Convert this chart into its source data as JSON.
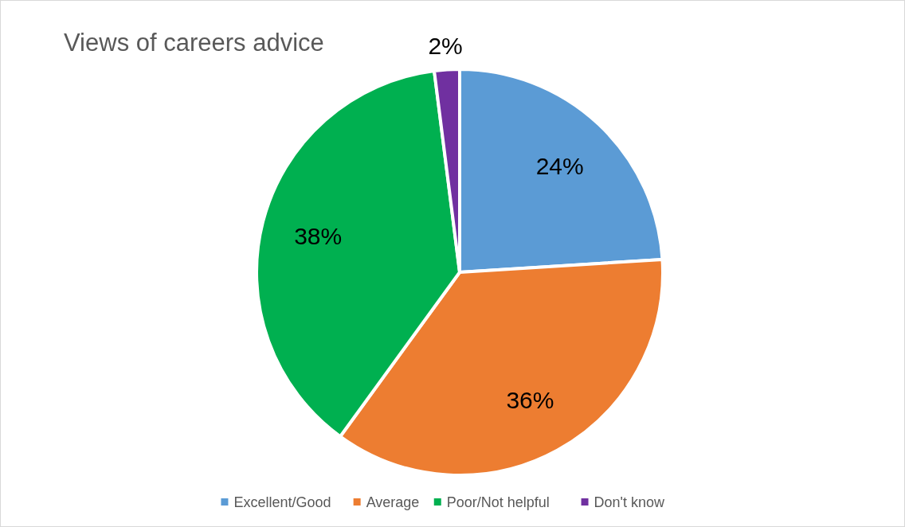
{
  "chart_data": {
    "type": "pie",
    "title": "Views of careers advice",
    "categories": [
      "Excellent/Good",
      "Average",
      "Poor/Not helpful",
      "Don't know"
    ],
    "values": [
      24,
      36,
      38,
      2
    ],
    "colors": [
      "#5b9bd5",
      "#ed7d31",
      "#00b050",
      "#7030a0"
    ],
    "value_labels": [
      "24%",
      "36%",
      "38%",
      "2%"
    ],
    "legend": "bottom"
  }
}
